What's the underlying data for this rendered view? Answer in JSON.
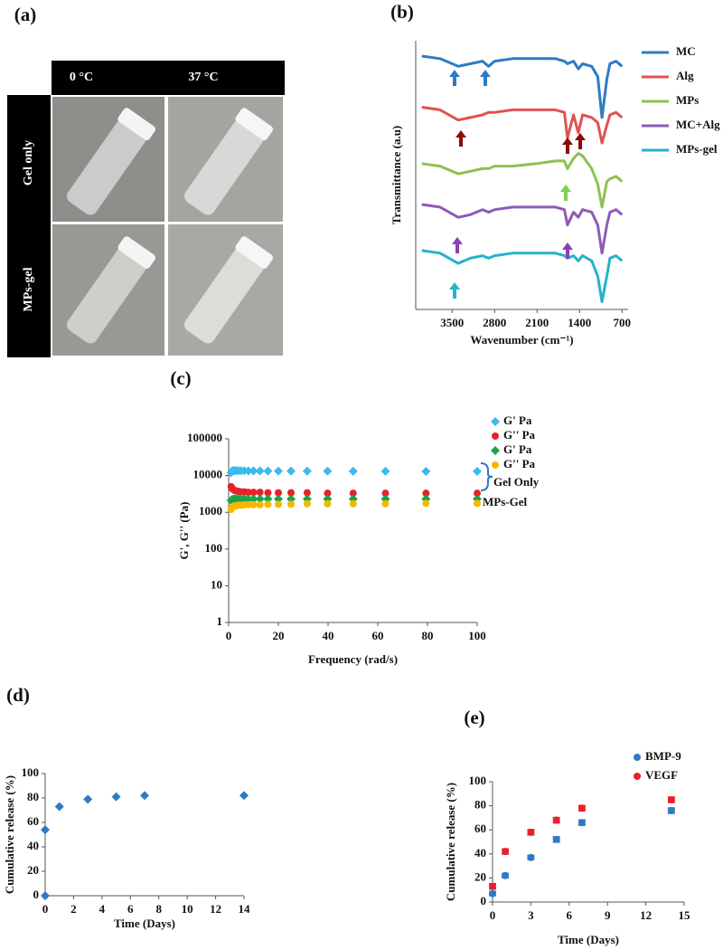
{
  "photo_grid": {
    "label": "(a)",
    "columns": [
      "0 °C",
      "37 °C"
    ],
    "rows": [
      "Gel only",
      "MPs-gel"
    ]
  },
  "chart_data": [
    {
      "type": "line",
      "label": "(b)",
      "xlabel": "Wavenumber (cm⁻¹)",
      "ylabel": "Transmittance (a.u)",
      "x": [
        4000,
        3700,
        3400,
        3200,
        3000,
        2900,
        2800,
        2500,
        2100,
        1800,
        1650,
        1600,
        1500,
        1420,
        1350,
        1200,
        1100,
        1030,
        950,
        900,
        800,
        700
      ],
      "xlim": [
        4100,
        600
      ],
      "xticks": [
        3500,
        2800,
        2100,
        1400,
        700
      ],
      "ylim": [
        -5,
        100
      ],
      "series": [
        {
          "name": "MC",
          "color": "#2e7bc4",
          "values": [
            94,
            93,
            90,
            91,
            92,
            90,
            92,
            93,
            93,
            93,
            92,
            91,
            92,
            89,
            91,
            90,
            86,
            70,
            85,
            91,
            92,
            90
          ]
        },
        {
          "name": "Alg",
          "color": "#e05252",
          "values": [
            74,
            73,
            69,
            70,
            71,
            72,
            72,
            73,
            73,
            73,
            72,
            62,
            71,
            64,
            71,
            70,
            68,
            60,
            67,
            71,
            72,
            70
          ]
        },
        {
          "name": "MPs",
          "color": "#8dc152",
          "values": [
            52,
            51,
            48,
            49,
            50,
            50,
            51,
            51,
            52,
            53,
            53,
            50,
            54,
            56,
            55,
            50,
            44,
            35,
            45,
            46,
            47,
            45
          ]
        },
        {
          "name": "MC+Alg",
          "color": "#8e5bb5",
          "values": [
            36,
            35,
            31,
            32,
            34,
            33,
            34,
            35,
            35,
            35,
            34,
            28,
            33,
            31,
            34,
            33,
            28,
            17,
            28,
            33,
            34,
            32
          ]
        },
        {
          "name": "MPs-gel",
          "color": "#26b3c8",
          "values": [
            18,
            17,
            13,
            15,
            16,
            15,
            16,
            17,
            17,
            17,
            16,
            15,
            16,
            14,
            16,
            14,
            8,
            -2,
            8,
            15,
            16,
            14
          ]
        }
      ]
    },
    {
      "type": "scatter",
      "label": "(c)",
      "xlabel": "Frequency (rad/s)",
      "ylabel": "G', G'' (Pa)",
      "log_y": true,
      "x": [
        1,
        1.26,
        1.58,
        2,
        2.51,
        3.16,
        3.98,
        5.01,
        6.31,
        7.94,
        10,
        12.6,
        15.8,
        20,
        25.1,
        31.6,
        39.8,
        50.1,
        63.1,
        79.4,
        100
      ],
      "xlim": [
        0,
        100
      ],
      "xticks": [
        0,
        20,
        40,
        60,
        80,
        100
      ],
      "ylim": [
        1,
        100000
      ],
      "yticks": [
        1,
        10,
        100,
        1000,
        10000,
        100000
      ],
      "annotations": [
        {
          "text": "Gel Only",
          "color": "#2e7bc4"
        },
        {
          "text": "MPs-Gel",
          "color": "#1fa34a"
        }
      ],
      "series": [
        {
          "name": "G' Pa",
          "color": "#3cb9ef",
          "marker": "diamond",
          "values": [
            12000,
            13000,
            13500,
            13500,
            13600,
            13600,
            13500,
            13500,
            13500,
            13400,
            13400,
            13400,
            13300,
            13300,
            13300,
            13200,
            13200,
            13100,
            13100,
            13000,
            13000
          ]
        },
        {
          "name": "G'' Pa",
          "color": "#e8202a",
          "marker": "circle",
          "values": [
            5000,
            4600,
            4300,
            4100,
            3900,
            3800,
            3700,
            3600,
            3600,
            3500,
            3500,
            3500,
            3400,
            3400,
            3400,
            3400,
            3300,
            3300,
            3300,
            3300,
            3300
          ]
        },
        {
          "name": "G' Pa",
          "color": "#1fa34a",
          "marker": "diamond",
          "values": [
            2100,
            2200,
            2200,
            2300,
            2300,
            2300,
            2300,
            2300,
            2300,
            2300,
            2300,
            2300,
            2300,
            2300,
            2300,
            2300,
            2300,
            2300,
            2300,
            2300,
            2300
          ]
        },
        {
          "name": "G'' Pa",
          "color": "#f5b800",
          "marker": "circle",
          "values": [
            1200,
            1300,
            1400,
            1450,
            1500,
            1500,
            1550,
            1550,
            1600,
            1600,
            1600,
            1600,
            1650,
            1650,
            1650,
            1700,
            1700,
            1700,
            1700,
            1750,
            1750
          ]
        }
      ]
    },
    {
      "type": "scatter",
      "label": "(d)",
      "xlabel": "Time (Days)",
      "ylabel": "Cumulative release (%)",
      "x": [
        0,
        0,
        1,
        3,
        5,
        7,
        14
      ],
      "xlim": [
        0,
        14
      ],
      "xticks": [
        0,
        2,
        4,
        6,
        8,
        10,
        12,
        14
      ],
      "ylim": [
        0,
        100
      ],
      "yticks": [
        0,
        20,
        40,
        60,
        80,
        100
      ],
      "series": [
        {
          "color": "#2e7bc4",
          "marker": "diamond",
          "values": [
            0,
            54,
            73,
            79,
            81,
            82,
            82
          ]
        }
      ]
    },
    {
      "type": "scatter",
      "label": "(e)",
      "xlabel": "Time (Days)",
      "ylabel": "Cumulative release (%)",
      "x": [
        0,
        1,
        3,
        5,
        7,
        14
      ],
      "xlim": [
        0,
        15
      ],
      "xticks": [
        0,
        3,
        6,
        9,
        12,
        15
      ],
      "ylim": [
        0,
        100
      ],
      "yticks": [
        0,
        20,
        40,
        60,
        80,
        100
      ],
      "series": [
        {
          "name": "BMP-9",
          "color": "#2e7bc4",
          "marker": "circle",
          "values": [
            7,
            22,
            37,
            52,
            66,
            76
          ],
          "errors": [
            1.5,
            1.5,
            1.5,
            2,
            2,
            2
          ]
        },
        {
          "name": "VEGF",
          "color": "#e8202a",
          "marker": "circle",
          "values": [
            13,
            42,
            58,
            68,
            78,
            85
          ],
          "errors": [
            2,
            2,
            2,
            2,
            2,
            2
          ]
        }
      ]
    }
  ]
}
